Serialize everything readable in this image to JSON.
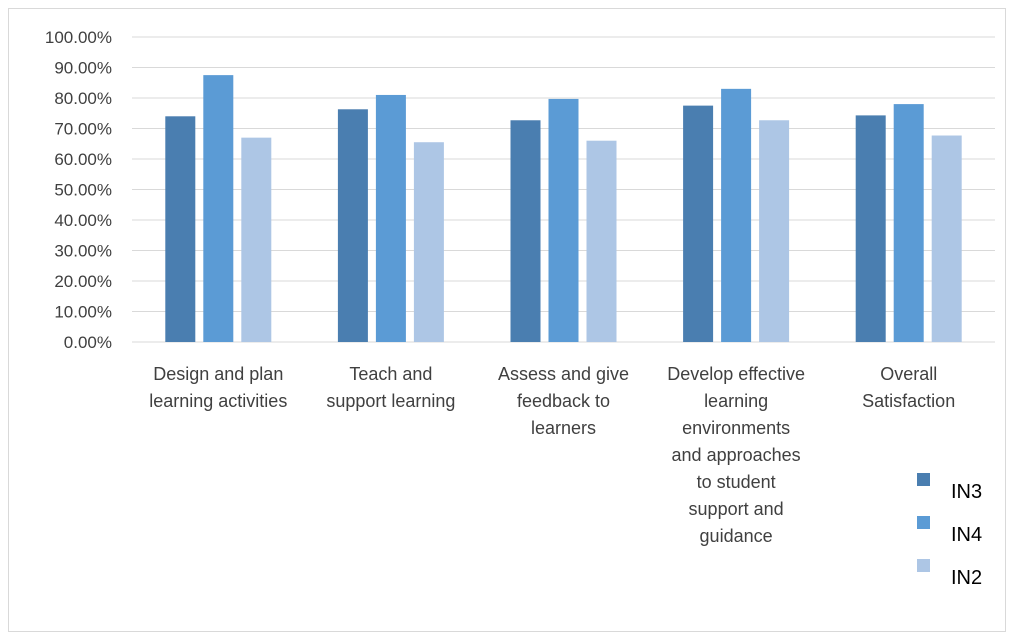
{
  "chart_data": {
    "type": "bar",
    "categories": [
      [
        "Design and plan",
        "learning activities"
      ],
      [
        "Teach and",
        "support learning"
      ],
      [
        "Assess and give",
        "feedback to",
        "learners"
      ],
      [
        "Develop effective",
        "learning",
        "environments",
        "and approaches",
        "to student",
        "support and",
        "guidance"
      ],
      [
        "Overall",
        "Satisfaction"
      ]
    ],
    "series": [
      {
        "name": "IN3",
        "color": "#4a7eb0",
        "values": [
          74.0,
          76.3,
          72.7,
          77.5,
          74.3
        ]
      },
      {
        "name": "IN4",
        "color": "#5b9bd5",
        "values": [
          87.5,
          81.0,
          79.7,
          83.0,
          78.0
        ]
      },
      {
        "name": "IN2",
        "color": "#adc6e5",
        "values": [
          67.0,
          65.5,
          66.0,
          72.7,
          67.7
        ]
      }
    ],
    "y_ticks": [
      "0.00%",
      "10.00%",
      "20.00%",
      "30.00%",
      "40.00%",
      "50.00%",
      "60.00%",
      "70.00%",
      "80.00%",
      "90.00%",
      "100.00%"
    ],
    "ylim": [
      0,
      100
    ],
    "grid": true,
    "legend_position": "bottom-right"
  }
}
